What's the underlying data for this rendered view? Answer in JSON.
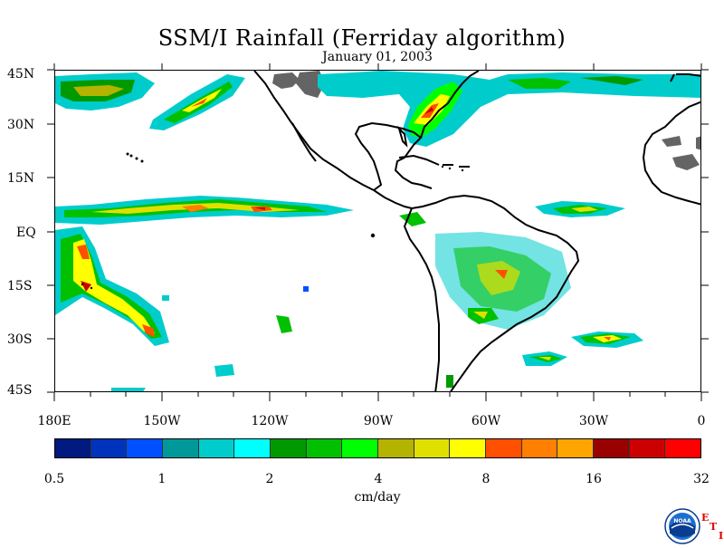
{
  "title": "SSM/I Rainfall (Ferriday algorithm)",
  "subtitle": "January 01, 2003",
  "map": {
    "lat_labels": [
      "45N",
      "30N",
      "15N",
      "EQ",
      "15S",
      "30S",
      "45S"
    ],
    "lon_labels": [
      "180E",
      "150W",
      "120W",
      "90W",
      "60W",
      "30W",
      "0"
    ],
    "lon_range": [
      -180,
      0
    ],
    "lat_range": [
      -45,
      45
    ],
    "land_outline_color": "#000000",
    "missing_data_color": "#646464"
  },
  "colorbar": {
    "colors": [
      "#001a80",
      "#0033bb",
      "#0050ff",
      "#009999",
      "#00cccc",
      "#00ffff",
      "#009900",
      "#00c000",
      "#00ff00",
      "#b3b300",
      "#e0e000",
      "#ffff00",
      "#ff5000",
      "#ff7f00",
      "#ffa500",
      "#990000",
      "#cc0000",
      "#ff0000"
    ],
    "tick_labels": [
      "0.5",
      "1",
      "2",
      "4",
      "8",
      "16",
      "32"
    ],
    "units": "cm/day"
  },
  "logo": {
    "agency_text": "NOAA",
    "side_letters": [
      "E",
      "T",
      "I"
    ],
    "icon": "noaa-logo-icon"
  }
}
